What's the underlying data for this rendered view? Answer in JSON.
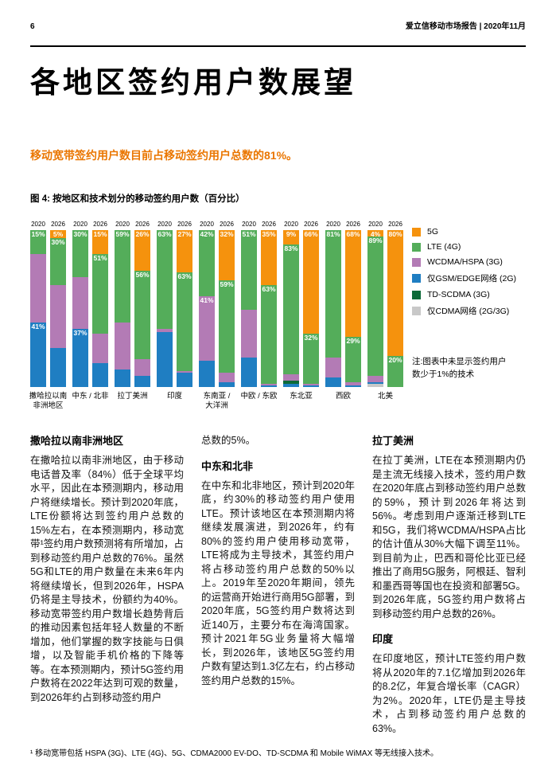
{
  "page": {
    "number": "6",
    "header_right": "爱立信移动市场报告 | 2020年11月",
    "title": "各地区签约用户数展望",
    "highlight": "移动宽带签约用户数目前占移动签约用户总数的81%。",
    "figure_caption": "图 4: 按地区和技术划分的移动签约用户数（百分比）",
    "footnote": "¹ 移动宽带包括 HSPA (3G)、LTE (4G)、5G、CDMA2000 EV-DO、TD-SCDMA 和 Mobile WiMAX 等无线接入技术。"
  },
  "chart_data": {
    "type": "bar",
    "stacked": true,
    "unit": "percent",
    "value_range": [
      0,
      100
    ],
    "years": [
      "2020",
      "2026"
    ],
    "note_lines": [
      "注:图表中未显示签约用户",
      "数少于1%的技术"
    ],
    "legend": [
      {
        "key": "5g",
        "label": "5G",
        "color": "#F5920D"
      },
      {
        "key": "lte",
        "label": "LTE (4G)",
        "color": "#54AD5A"
      },
      {
        "key": "wcdma",
        "label": "WCDMA/HSPA (3G)",
        "color": "#B37BB5"
      },
      {
        "key": "gsm",
        "label": "仅GSM/EDGE网络 (2G)",
        "color": "#1F7EC2"
      },
      {
        "key": "td",
        "label": "TD-SCDMA (3G)",
        "color": "#0C6A38"
      },
      {
        "key": "cdma",
        "label": "仅CDMA网络 (2G/3G)",
        "color": "#C8C8C8"
      }
    ],
    "regions": [
      {
        "name": "撒哈拉以南非洲地区",
        "label_lines": [
          "撒哈拉以南",
          "非洲地区"
        ],
        "bars": [
          {
            "year": "2020",
            "segments": [
              {
                "key": "gsm",
                "value": 41,
                "label": "41%"
              },
              {
                "key": "wcdma",
                "value": 44
              },
              {
                "key": "lte",
                "value": 15,
                "label": "15%"
              }
            ]
          },
          {
            "year": "2026",
            "segments": [
              {
                "key": "gsm",
                "value": 25
              },
              {
                "key": "wcdma",
                "value": 40
              },
              {
                "key": "lte",
                "value": 30,
                "label": "30%"
              },
              {
                "key": "5g",
                "value": 5,
                "label": "5%"
              }
            ]
          }
        ]
      },
      {
        "name": "中东 / 北非",
        "label_lines": [
          "中东 / 北非"
        ],
        "bars": [
          {
            "year": "2020",
            "segments": [
              {
                "key": "gsm",
                "value": 37,
                "label": "37%"
              },
              {
                "key": "wcdma",
                "value": 33
              },
              {
                "key": "lte",
                "value": 30,
                "label": "30%"
              }
            ]
          },
          {
            "year": "2026",
            "segments": [
              {
                "key": "gsm",
                "value": 15
              },
              {
                "key": "wcdma",
                "value": 19
              },
              {
                "key": "lte",
                "value": 51,
                "label": "51%"
              },
              {
                "key": "5g",
                "value": 15,
                "label": "15%"
              }
            ]
          }
        ]
      },
      {
        "name": "拉丁美洲",
        "label_lines": [
          "拉丁美洲"
        ],
        "bars": [
          {
            "year": "2020",
            "segments": [
              {
                "key": "gsm",
                "value": 11
              },
              {
                "key": "wcdma",
                "value": 30
              },
              {
                "key": "lte",
                "value": 59,
                "label": "59%"
              }
            ]
          },
          {
            "year": "2026",
            "segments": [
              {
                "key": "gsm",
                "value": 7
              },
              {
                "key": "wcdma",
                "value": 11
              },
              {
                "key": "lte",
                "value": 56,
                "label": "56%"
              },
              {
                "key": "5g",
                "value": 26,
                "label": "26%"
              }
            ]
          }
        ]
      },
      {
        "name": "印度",
        "label_lines": [
          "印度"
        ],
        "bars": [
          {
            "year": "2020",
            "segments": [
              {
                "key": "gsm",
                "value": 35
              },
              {
                "key": "wcdma",
                "value": 2
              },
              {
                "key": "lte",
                "value": 63,
                "label": "63%"
              }
            ]
          },
          {
            "year": "2026",
            "segments": [
              {
                "key": "gsm",
                "value": 9
              },
              {
                "key": "wcdma",
                "value": 1
              },
              {
                "key": "lte",
                "value": 63,
                "label": "63%"
              },
              {
                "key": "5g",
                "value": 27,
                "label": "27%"
              }
            ]
          }
        ]
      },
      {
        "name": "东南亚 / 大洋洲",
        "label_lines": [
          "东南亚 /",
          "大洋洲"
        ],
        "bars": [
          {
            "year": "2020",
            "segments": [
              {
                "key": "gsm",
                "value": 17
              },
              {
                "key": "wcdma",
                "value": 41,
                "label": "41%"
              },
              {
                "key": "lte",
                "value": 42,
                "label": "42%"
              }
            ]
          },
          {
            "year": "2026",
            "segments": [
              {
                "key": "gsm",
                "value": 3
              },
              {
                "key": "wcdma",
                "value": 6
              },
              {
                "key": "lte",
                "value": 59,
                "label": "59%"
              },
              {
                "key": "5g",
                "value": 32,
                "label": "32%"
              }
            ]
          }
        ]
      },
      {
        "name": "中欧 / 东欧",
        "label_lines": [
          "中欧 / 东欧"
        ],
        "bars": [
          {
            "year": "2020",
            "segments": [
              {
                "key": "gsm",
                "value": 19
              },
              {
                "key": "wcdma",
                "value": 30
              },
              {
                "key": "lte",
                "value": 51,
                "label": "51%"
              }
            ]
          },
          {
            "year": "2026",
            "segments": [
              {
                "key": "gsm",
                "value": 1
              },
              {
                "key": "wcdma",
                "value": 1
              },
              {
                "key": "lte",
                "value": 63,
                "label": "63%"
              },
              {
                "key": "5g",
                "value": 35,
                "label": "35%"
              }
            ]
          }
        ]
      },
      {
        "name": "东北亚",
        "label_lines": [
          "东北亚"
        ],
        "bars": [
          {
            "year": "2020",
            "segments": [
              {
                "key": "gsm",
                "value": 2
              },
              {
                "key": "td",
                "value": 2
              },
              {
                "key": "wcdma",
                "value": 4
              },
              {
                "key": "lte",
                "value": 83,
                "label": "83%"
              },
              {
                "key": "5g",
                "value": 9,
                "label": "9%"
              }
            ]
          },
          {
            "year": "2026",
            "segments": [
              {
                "key": "gsm",
                "value": 1
              },
              {
                "key": "wcdma",
                "value": 1
              },
              {
                "key": "lte",
                "value": 32,
                "label": "32%"
              },
              {
                "key": "5g",
                "value": 66,
                "label": "66%"
              }
            ]
          }
        ]
      },
      {
        "name": "西欧",
        "label_lines": [
          "西欧"
        ],
        "bars": [
          {
            "year": "2020",
            "segments": [
              {
                "key": "gsm",
                "value": 6
              },
              {
                "key": "wcdma",
                "value": 13
              },
              {
                "key": "lte",
                "value": 81,
                "label": "81%"
              }
            ]
          },
          {
            "year": "2026",
            "segments": [
              {
                "key": "gsm",
                "value": 1
              },
              {
                "key": "wcdma",
                "value": 2
              },
              {
                "key": "lte",
                "value": 29,
                "label": "29%"
              },
              {
                "key": "5g",
                "value": 68,
                "label": "68%"
              }
            ]
          }
        ]
      },
      {
        "name": "北美",
        "label_lines": [
          "北美"
        ],
        "bars": [
          {
            "year": "2020",
            "segments": [
              {
                "key": "cdma",
                "value": 2
              },
              {
                "key": "gsm",
                "value": 1
              },
              {
                "key": "wcdma",
                "value": 4
              },
              {
                "key": "lte",
                "value": 89,
                "label": "89%"
              },
              {
                "key": "5g",
                "value": 4,
                "label": "4%"
              }
            ]
          },
          {
            "year": "2026",
            "segments": [
              {
                "key": "lte",
                "value": 20,
                "label": "20%"
              },
              {
                "key": "5g",
                "value": 80,
                "label": "80%"
              }
            ]
          }
        ]
      }
    ]
  },
  "articles": {
    "col1": {
      "heading": "撒哈拉以南非洲地区",
      "body": "在撒哈拉以南非洲地区，由于移动电话普及率（84%）低于全球平均水平，因此在本预测期内，移动用户将继续增长。预计到2020年底，LTE份额将达到签约用户总数的15%左右，在本预测期内，移动宽带¹签约用户数预测将有所增加，占到移动签约用户总数的76%。虽然5G和LTE的用户数量在未来6年内将继续增长，但到2026年，HSPA仍将是主导技术，份额约为40%。移动宽带签约用户数增长趋势背后的推动因素包括年轻人数量的不断增加，他们掌握的数字技能与日俱增，以及智能手机价格的下降等等。在本预测期内，预计5G签约用户数将在2022年达到可观的数量，到2026年约占到移动签约用户"
    },
    "col2": {
      "lead": "总数的5%。",
      "heading": "中东和北非",
      "body": "在中东和北非地区，预计到2020年底，约30%的移动签约用户使用LTE。预计该地区在本预测期内将继续发展演进，到2026年，约有80%的签约用户使用移动宽带，LTE将成为主导技术，其签约用户将占移动签约用户总数的50%以上。2019年至2020年期间，领先的运营商开始进行商用5G部署，到2020年底，5G签约用户数将达到近140万，主要分布在海湾国家。预计2021年5G业务量将大幅增长，到2026年，该地区5G签约用户数有望达到1.3亿左右，约占移动签约用户总数的15%。"
    },
    "col3": {
      "heading1": "拉丁美洲",
      "body1": "在拉丁美洲，LTE在本预测期内仍是主流无线接入技术，签约用户数在2020年底占到移动签约用户总数的59%，预计到2026年将达到56%。考虑到用户逐渐迁移到LTE和5G，我们将WCDMA/HSPA占比的估计值从30%大幅下调至11%。到目前为止，巴西和哥伦比亚已经推出了商用5G服务，阿根廷、智利和墨西哥等国也在投资和部署5G。到2026年底，5G签约用户数将占到移动签约用户总数的26%。",
      "heading2": "印度",
      "body2": "在印度地区，预计LTE签约用户数将从2020年的7.1亿增加到2026年的8.2亿，年复合增长率（CAGR）为2%。2020年，LTE仍是主导技术，占到移动签约用户总数的63%。"
    }
  }
}
